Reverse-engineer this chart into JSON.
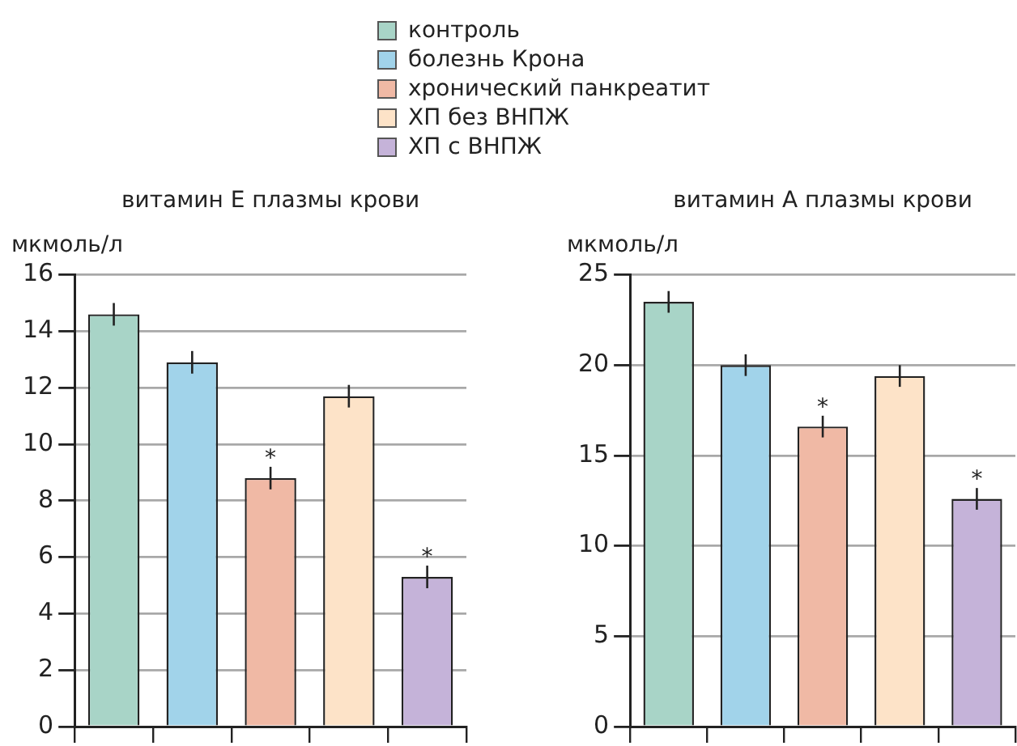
{
  "chart_data": [
    {
      "type": "bar",
      "title": "витамин E плазмы крови",
      "ylabel": "мкмоль/л",
      "categories": [
        null,
        null,
        null,
        null,
        null
      ],
      "series": [
        {
          "name": "контроль",
          "color": "#a8d4c7",
          "values": [
            14.6,
            null,
            null,
            null,
            null
          ],
          "errors": [
            0.4,
            null,
            null,
            null,
            null
          ]
        },
        {
          "name": "болезнь Крона",
          "color": "#a1d3ea",
          "values": [
            null,
            12.9,
            null,
            null,
            null
          ],
          "errors": [
            null,
            0.4,
            null,
            null,
            null
          ]
        },
        {
          "name": "хронический панкреатит",
          "color": "#f0b9a5",
          "values": [
            null,
            null,
            8.8,
            null,
            null
          ],
          "errors": [
            null,
            null,
            0.4,
            null,
            null
          ],
          "value_labels": [
            null,
            null,
            "*",
            null,
            null
          ]
        },
        {
          "name": "ХП без ВНПЖ",
          "color": "#fde3c8",
          "values": [
            null,
            null,
            null,
            11.7,
            null
          ],
          "errors": [
            null,
            null,
            null,
            0.4,
            null
          ]
        },
        {
          "name": "ХП с ВНПЖ",
          "color": "#c5b3d9",
          "values": [
            null,
            null,
            null,
            null,
            5.3
          ],
          "errors": [
            null,
            null,
            null,
            null,
            0.4
          ],
          "value_labels": [
            null,
            null,
            null,
            null,
            "*"
          ]
        }
      ],
      "ylim": [
        0,
        16
      ],
      "yticks": [
        0,
        2,
        4,
        6,
        8,
        10,
        12,
        14,
        16
      ],
      "grid": "y",
      "legend": "top",
      "tick_labels": "y"
    },
    {
      "type": "bar",
      "title": "витамин A плазмы крови",
      "ylabel": "мкмоль/л",
      "categories": [
        null,
        null,
        null,
        null,
        null
      ],
      "series": [
        {
          "color": "#a8d4c7",
          "values": [
            23.5,
            null,
            null,
            null,
            null
          ],
          "errors": [
            0.6,
            null,
            null,
            null,
            null
          ]
        },
        {
          "color": "#a1d3ea",
          "values": [
            null,
            20.0,
            null,
            null,
            null
          ],
          "errors": [
            null,
            0.6,
            null,
            null,
            null
          ]
        },
        {
          "color": "#f0b9a5",
          "values": [
            null,
            null,
            16.6,
            null,
            null
          ],
          "errors": [
            null,
            null,
            0.6,
            null,
            null
          ],
          "value_labels": [
            null,
            null,
            "*",
            null,
            null
          ]
        },
        {
          "color": "#fde3c8",
          "values": [
            null,
            null,
            null,
            19.4,
            null
          ],
          "errors": [
            null,
            null,
            null,
            0.6,
            null
          ]
        },
        {
          "color": "#c5b3d9",
          "values": [
            null,
            null,
            null,
            null,
            12.6
          ],
          "errors": [
            null,
            null,
            null,
            null,
            0.6
          ],
          "value_labels": [
            null,
            null,
            null,
            null,
            "*"
          ]
        }
      ],
      "ylim": [
        0,
        25
      ],
      "yticks": [
        0,
        5,
        10,
        15,
        20,
        25
      ],
      "grid": "y",
      "tick_labels": "y"
    }
  ]
}
